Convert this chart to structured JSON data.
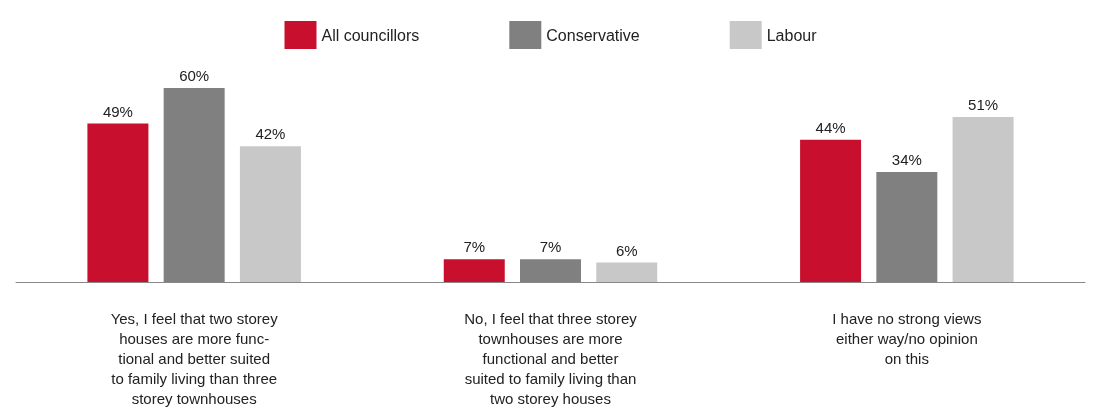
{
  "chart_data": {
    "type": "bar",
    "categories": [
      "Yes, I feel that two storey\nhouses are more func-\ntional and better suited\nto family living than three\nstorey townhouses",
      "No, I feel that three storey\ntownhouses are more\nfunctional and better\nsuited to family living than\ntwo storey houses",
      "I have no strong views\neither way/no opinion\non this"
    ],
    "series": [
      {
        "name": "All councillors",
        "color": "#c8102e",
        "values": [
          49,
          7,
          44
        ],
        "value_labels": [
          "49%",
          "7%",
          "44%"
        ]
      },
      {
        "name": "Conservative",
        "color": "#808080",
        "values": [
          60,
          7,
          34
        ],
        "value_labels": [
          "60%",
          "7%",
          "34%"
        ]
      },
      {
        "name": "Labour",
        "color": "#c8c8c8",
        "values": [
          42,
          6,
          51
        ],
        "value_labels": [
          "42%",
          "6%",
          "51%"
        ]
      }
    ],
    "legend": "top",
    "grid": false
  }
}
